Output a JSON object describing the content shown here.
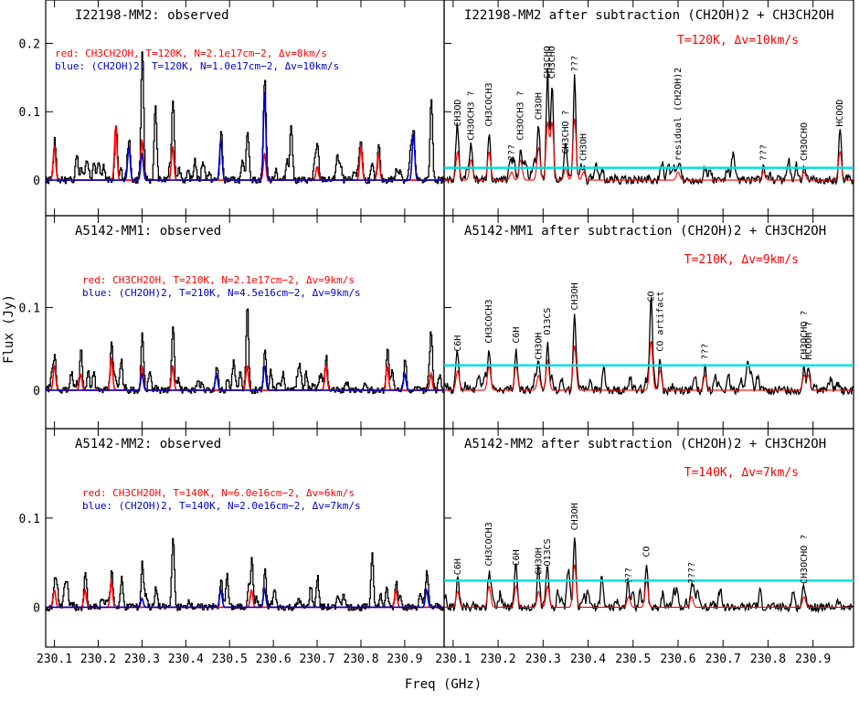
{
  "figure": {
    "xlabel": "Freq (GHz)",
    "ylabel": "Flux (Jy)",
    "x_ticks": [
      "230.1",
      "230.2",
      "230.3",
      "230.4",
      "230.5",
      "230.6",
      "230.7",
      "230.8",
      "230.9"
    ],
    "x_ticks_right": [
      "230.1",
      "230.2",
      "230.3",
      "230.4",
      "230.5",
      "230.6",
      "230.7",
      "230.8",
      "230.9"
    ]
  },
  "colors": {
    "observed": "#000000",
    "red_model": "#ff0000",
    "blue_model": "#0000cc",
    "cyan_line": "#00e0e0"
  },
  "chart_data": [
    {
      "type": "line",
      "panel": "I22198-MM2 observed",
      "title": "I22198-MM2: observed",
      "legend_red": "red: CH3CH2OH, T=120K, N=2.1e17cm−2, Δv=8km/s",
      "legend_blue": "blue: (CH2OH)2, T=120K, N=1.0e17cm−2, Δv=10km/s",
      "ylim": [
        -0.02,
        0.25
      ],
      "y_ticks": [
        "0",
        "0.1",
        "0.2"
      ],
      "x": [
        230.1,
        230.15,
        230.2,
        230.24,
        230.27,
        230.3,
        230.33,
        230.37,
        230.42,
        230.48,
        230.54,
        230.58,
        230.64,
        230.7,
        230.8,
        230.84,
        230.92,
        230.96
      ],
      "series": [
        {
          "name": "observed",
          "values": [
            0.06,
            0.04,
            0.03,
            0.08,
            0.05,
            0.19,
            0.11,
            0.12,
            0.03,
            0.07,
            0.06,
            0.13,
            0.08,
            0.05,
            0.05,
            0.05,
            0.06,
            0.12
          ]
        },
        {
          "name": "CH3CH2OH",
          "values": [
            0.05,
            0.0,
            0.0,
            0.08,
            0.0,
            0.06,
            0.0,
            0.05,
            0.0,
            0.0,
            0.0,
            0.04,
            0.0,
            0.02,
            0.05,
            0.04,
            0.0,
            0.0
          ]
        },
        {
          "name": "(CH2OH)2",
          "values": [
            0.0,
            0.0,
            0.0,
            0.0,
            0.05,
            0.04,
            0.0,
            0.0,
            0.0,
            0.06,
            0.0,
            0.13,
            0.0,
            0.0,
            0.0,
            0.0,
            0.07,
            0.0
          ]
        }
      ]
    },
    {
      "type": "line",
      "panel": "I22198-MM2 residual",
      "title": "I22198-MM2 after subtraction (CH2OH)2 + CH3CH2OH",
      "note": "T=120K, Δv=10km/s",
      "cyan_level": 0.018,
      "labels": [
        "CH3OD",
        "CH3OCH3 ?",
        "CH3COCH3",
        "???",
        "CH3OCH3 ?",
        "CH3OH",
        "CH3CHO",
        "CH3CHO",
        "CH3CHO ?",
        "???",
        "CH3OH",
        "residual (CH2OH)2",
        "???",
        "CH3OCHO",
        "HCOOD"
      ],
      "x": [
        230.11,
        230.14,
        230.18,
        230.23,
        230.25,
        230.29,
        230.31,
        230.32,
        230.35,
        230.37,
        230.39,
        230.6,
        230.79,
        230.88,
        230.96
      ],
      "values": [
        0.07,
        0.05,
        0.07,
        0.02,
        0.05,
        0.08,
        0.14,
        0.14,
        0.03,
        0.15,
        0.02,
        0.02,
        0.02,
        0.02,
        0.07
      ]
    },
    {
      "type": "line",
      "panel": "A5142-MM1 observed",
      "title": "A5142-MM1: observed",
      "legend_red": "red: CH3CH2OH, T=210K, N=2.1e17cm−2, Δv=9km/s",
      "legend_blue": "blue: (CH2OH)2, T=210K, N=4.5e16cm−2, Δv=9km/s",
      "ylim": [
        -0.02,
        0.2
      ],
      "y_ticks": [
        "0",
        "0.1"
      ],
      "x": [
        230.1,
        230.16,
        230.23,
        230.3,
        230.37,
        230.47,
        230.54,
        230.58,
        230.72,
        230.86,
        230.9,
        230.96
      ],
      "series": [
        {
          "name": "observed",
          "values": [
            0.04,
            0.05,
            0.06,
            0.07,
            0.08,
            0.03,
            0.1,
            0.05,
            0.04,
            0.05,
            0.04,
            0.05
          ]
        },
        {
          "name": "CH3CH2OH",
          "values": [
            0.03,
            0.02,
            0.04,
            0.03,
            0.03,
            0.0,
            0.03,
            0.0,
            0.03,
            0.03,
            0.0,
            0.02
          ]
        },
        {
          "name": "(CH2OH)2",
          "values": [
            0.0,
            0.0,
            0.0,
            0.02,
            0.0,
            0.02,
            0.0,
            0.03,
            0.0,
            0.0,
            0.02,
            0.0
          ]
        }
      ]
    },
    {
      "type": "line",
      "panel": "A5142-MM1 residual",
      "title": "A5142-MM1 after subtraction (CH2OH)2 + CH3CH2OH",
      "note": "T=210K, Δv=9km/s",
      "cyan_level": 0.03,
      "labels": [
        "C6H",
        "CH3COCH3",
        "C6H",
        "CH3OH",
        "O13CS",
        "CH3OH",
        "CO",
        "CO artifact",
        "???",
        "CH3OCHO ?",
        "HCOOH ?"
      ],
      "x": [
        230.11,
        230.18,
        230.24,
        230.29,
        230.31,
        230.37,
        230.54,
        230.56,
        230.66,
        230.88,
        230.89
      ],
      "values": [
        0.04,
        0.05,
        0.05,
        0.03,
        0.06,
        0.09,
        0.1,
        0.04,
        0.03,
        0.03,
        0.03
      ]
    },
    {
      "type": "line",
      "panel": "A5142-MM2 observed",
      "title": "A5142-MM2: observed",
      "legend_red": "red: CH3CH2OH, T=140K, N=6.0e16cm−2, Δv=6km/s",
      "legend_blue": "blue: (CH2OH)2, T=140K, N=2.0e16cm−2, Δv=7km/s",
      "ylim": [
        -0.02,
        0.19
      ],
      "y_ticks": [
        "0",
        "0.1"
      ],
      "x": [
        230.1,
        230.17,
        230.23,
        230.3,
        230.37,
        230.48,
        230.55,
        230.58,
        230.7,
        230.88,
        230.95
      ],
      "series": [
        {
          "name": "observed",
          "values": [
            0.03,
            0.04,
            0.04,
            0.05,
            0.08,
            0.03,
            0.05,
            0.04,
            0.03,
            0.03,
            0.04
          ]
        },
        {
          "name": "CH3CH2OH",
          "values": [
            0.02,
            0.02,
            0.03,
            0.0,
            0.0,
            0.0,
            0.02,
            0.0,
            0.0,
            0.02,
            0.0
          ]
        },
        {
          "name": "(CH2OH)2",
          "values": [
            0.0,
            0.0,
            0.0,
            0.01,
            0.0,
            0.02,
            0.0,
            0.02,
            0.0,
            0.0,
            0.02
          ]
        }
      ]
    },
    {
      "type": "line",
      "panel": "A5142-MM2 residual",
      "title": "A5142-MM2 after subtraction (CH2OH)2 + CH3CH2OH",
      "note": "T=140K, Δv=7km/s",
      "cyan_level": 0.03,
      "labels": [
        "C6H",
        "CH3COCH3",
        "C6H",
        "CH3OH",
        "O13CS",
        "CH3OH",
        "???",
        "CO",
        "????",
        "CH3OCHO ?"
      ],
      "x": [
        230.11,
        230.18,
        230.24,
        230.29,
        230.31,
        230.37,
        230.49,
        230.53,
        230.63,
        230.88
      ],
      "values": [
        0.03,
        0.04,
        0.04,
        0.03,
        0.04,
        0.08,
        0.02,
        0.05,
        0.02,
        0.02
      ]
    }
  ]
}
